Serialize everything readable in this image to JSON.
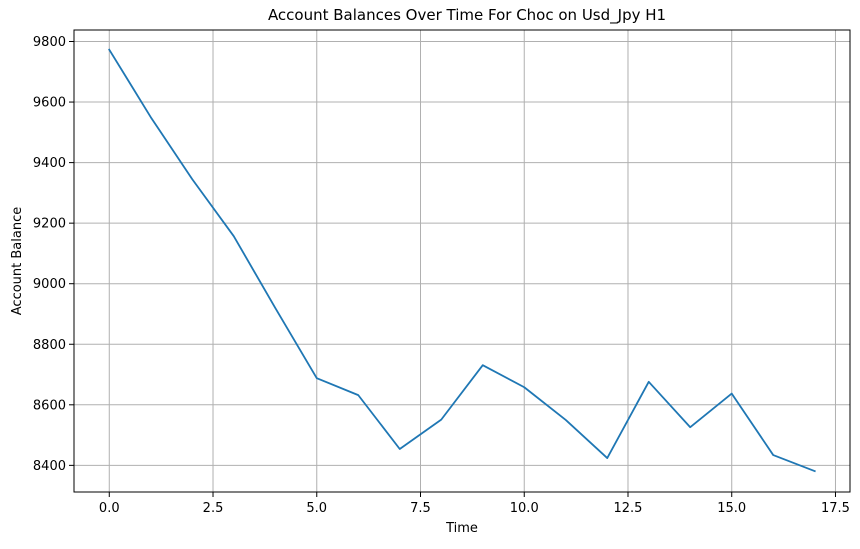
{
  "chart_data": {
    "type": "line",
    "title": "Account Balances Over Time For Choc on Usd_Jpy H1",
    "xlabel": "Time",
    "ylabel": "Account Balance",
    "xlim": [
      -0.85,
      17.85
    ],
    "ylim": [
      8312,
      9838
    ],
    "xticks": [
      0,
      2.5,
      5,
      7.5,
      10,
      12.5,
      15,
      17.5
    ],
    "xtick_labels": [
      "0.0",
      "2.5",
      "5.0",
      "7.5",
      "10.0",
      "12.5",
      "15.0",
      "17.5"
    ],
    "yticks": [
      8400,
      8600,
      8800,
      9000,
      9200,
      9400,
      9600,
      9800
    ],
    "ytick_labels": [
      "8400",
      "8600",
      "8800",
      "9000",
      "9200",
      "9400",
      "9600",
      "9800"
    ],
    "grid": true,
    "legend": false,
    "series": [
      {
        "color": "#1f77b4",
        "x": [
          0,
          1,
          2,
          3,
          4,
          5,
          6,
          7,
          8,
          9,
          10,
          11,
          12,
          13,
          14,
          15,
          16,
          17
        ],
        "y": [
          9773,
          9550,
          9345,
          9157,
          8920,
          8688,
          8632,
          8454,
          8551,
          8731,
          8658,
          8550,
          8424,
          8676,
          8526,
          8637,
          8434,
          8381
        ]
      }
    ],
    "grid_color": "#b0b0b0",
    "axis_color": "#000000"
  }
}
